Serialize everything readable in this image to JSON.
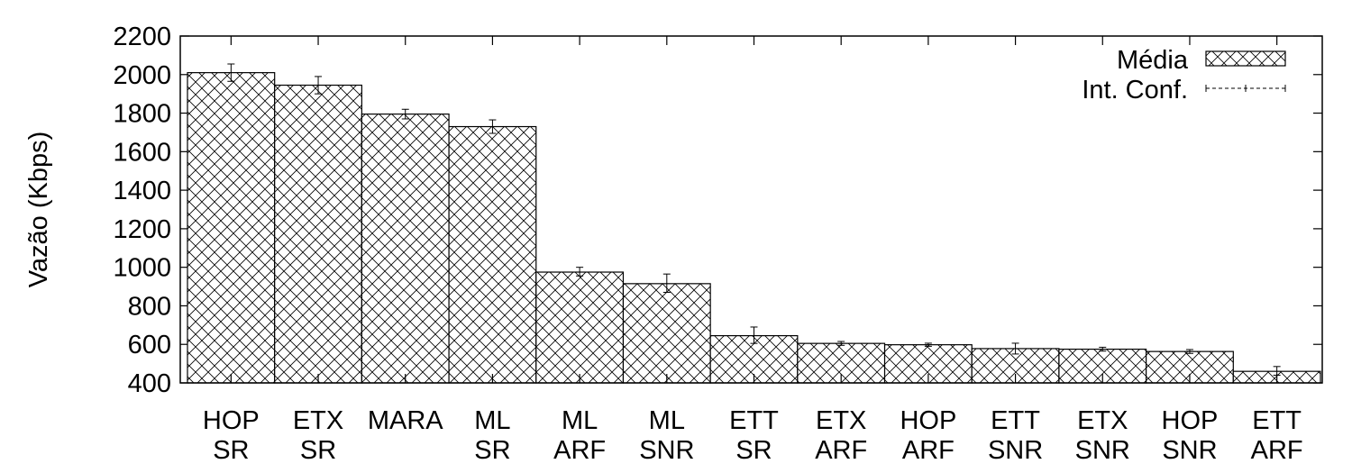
{
  "chart_data": {
    "type": "bar",
    "title": "",
    "xlabel": "",
    "ylabel": "Vazão (Kbps)",
    "ylim": [
      400,
      2200
    ],
    "yticks": [
      400,
      600,
      800,
      1000,
      1200,
      1400,
      1600,
      1800,
      2000,
      2200
    ],
    "categories": [
      [
        "HOP",
        "SR"
      ],
      [
        "ETX",
        "SR"
      ],
      [
        "MARA"
      ],
      [
        "ML",
        "SR"
      ],
      [
        "ML",
        "ARF"
      ],
      [
        "ML",
        "SNR"
      ],
      [
        "ETT",
        "SR"
      ],
      [
        "ETX",
        "ARF"
      ],
      [
        "HOP",
        "ARF"
      ],
      [
        "ETT",
        "SNR"
      ],
      [
        "ETX",
        "SNR"
      ],
      [
        "HOP",
        "SNR"
      ],
      [
        "ETT",
        "ARF"
      ]
    ],
    "series": [
      {
        "name": "Média",
        "values": [
          2010,
          1945,
          1795,
          1730,
          975,
          915,
          645,
          605,
          598,
          578,
          575,
          563,
          460
        ],
        "fill": "crosshatch"
      },
      {
        "name": "Int. Conf.",
        "type": "errorbar",
        "low": [
          1965,
          1900,
          1770,
          1695,
          955,
          870,
          605,
          595,
          590,
          550,
          565,
          553,
          440
        ],
        "high": [
          2055,
          1990,
          1820,
          1765,
          1000,
          965,
          690,
          615,
          606,
          606,
          585,
          573,
          485
        ]
      }
    ],
    "legend": "top-right",
    "grid": false
  }
}
